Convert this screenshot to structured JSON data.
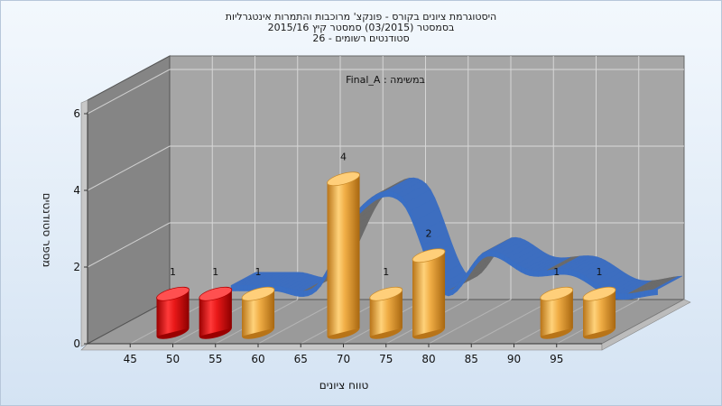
{
  "chart_data": {
    "type": "bar",
    "title_lines": [
      "היסטוגרמת ציונים בקורס - פונקצ' מרוכבות והתמרות אינטגרליות",
      "בסמסטר  (03/2015)  סמסטר קיץ  2015/16",
      "סטודנטים רשומים - 26"
    ],
    "subtitle": "במשימה : Final_A",
    "xlabel": "טווח ציונים",
    "ylabel": "מספר סטודנטים",
    "x_ticks": [
      "45",
      "50",
      "55",
      "60",
      "65",
      "70",
      "75",
      "80",
      "85",
      "90",
      "95"
    ],
    "y_ticks": [
      "0",
      "2",
      "4",
      "6"
    ],
    "ylim": [
      0,
      6
    ],
    "bars": [
      {
        "x": 47.5,
        "value": 1,
        "label": "1",
        "color": "#d21010"
      },
      {
        "x": 52.5,
        "value": 1,
        "label": "1",
        "color": "#d21010"
      },
      {
        "x": 57.5,
        "value": 1,
        "label": "1",
        "color": "#e9a53c"
      },
      {
        "x": 67.5,
        "value": 4,
        "label": "4",
        "color": "#e9a53c"
      },
      {
        "x": 72.5,
        "value": 1,
        "label": "1",
        "color": "#e9a53c"
      },
      {
        "x": 77.5,
        "value": 2,
        "label": "2",
        "color": "#e9a53c"
      },
      {
        "x": 92.5,
        "value": 1,
        "label": "1",
        "color": "#e9a53c"
      },
      {
        "x": 97.5,
        "value": 1,
        "label": "1",
        "color": "#e9a53c"
      }
    ],
    "curve": {
      "x": [
        52.5,
        57.5,
        62.5,
        67.5,
        72.5,
        77.5,
        82.5,
        87.5,
        92.5,
        97.5,
        102.5
      ],
      "y": [
        1.0,
        1.0,
        1.0,
        3.0,
        3.3,
        0.9,
        1.9,
        1.4,
        1.4,
        0.8,
        0.9
      ]
    },
    "grid": true,
    "colors": {
      "wall": "#a6a6a6",
      "side_wall": "#858585",
      "floor": "#9a9a9a",
      "ribbon_top": "#6b6b6b",
      "ribbon_front": "#3a6fc4"
    }
  }
}
